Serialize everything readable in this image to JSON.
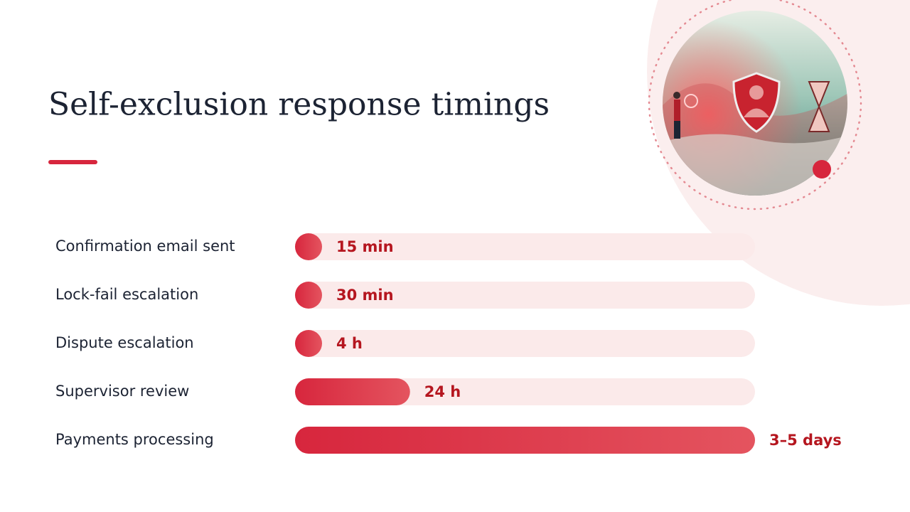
{
  "chart_data": {
    "type": "bar",
    "orientation": "horizontal",
    "title": "Self-exclusion response timings",
    "categories": [
      "Confirmation email sent",
      "Lock-fail escalation",
      "Dispute escalation",
      "Supervisor review",
      "Payments processing"
    ],
    "values": [
      0.25,
      0.5,
      4,
      24,
      96
    ],
    "value_labels": [
      "15 min",
      "30 min",
      "4 h",
      "24 h",
      "3–5 days"
    ],
    "xlim": [
      0,
      96
    ],
    "color": "#d7263d",
    "track_color": "#fbeaea"
  }
}
